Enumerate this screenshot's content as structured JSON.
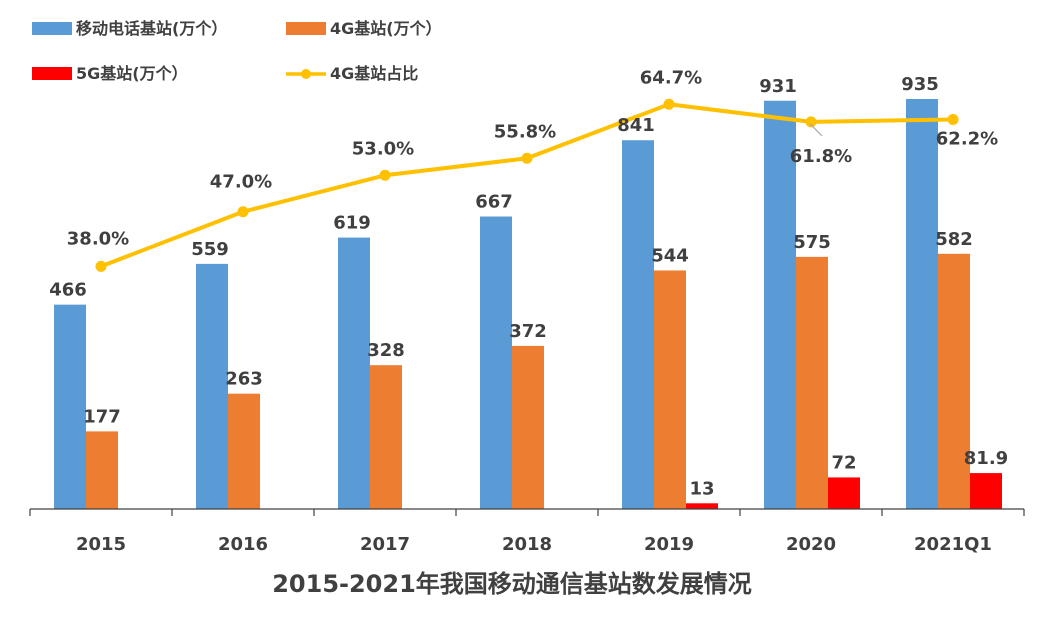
{
  "chart_data": {
    "type": "bar",
    "title": "2015-2021年我国移动通信基站数发展情况",
    "categories": [
      "2015",
      "2016",
      "2017",
      "2018",
      "2019",
      "2020",
      "2021Q1"
    ],
    "ylim": [
      0,
      1000
    ],
    "line_ylim": [
      0,
      100
    ],
    "series": [
      {
        "name": "移动电话基站(万个）",
        "type": "bar",
        "color": "#5b9bd5",
        "values": [
          466,
          559,
          619,
          667,
          841,
          931,
          935
        ],
        "labels": [
          "466",
          "559",
          "619",
          "667",
          "841",
          "931",
          "935"
        ]
      },
      {
        "name": "4G基站(万个）",
        "type": "bar",
        "color": "#ed7d31",
        "values": [
          177,
          263,
          328,
          372,
          544,
          575,
          582
        ],
        "labels": [
          "177",
          "263",
          "328",
          "372",
          "544",
          "575",
          "582"
        ]
      },
      {
        "name": "5G基站(万个）",
        "type": "bar",
        "color": "#ff0000",
        "values": [
          null,
          null,
          null,
          null,
          13,
          72,
          81.9
        ],
        "labels": [
          "",
          "",
          "",
          "",
          "13",
          "72",
          "81.9"
        ]
      },
      {
        "name": "4G基站占比",
        "type": "line",
        "color": "#ffc000",
        "values": [
          38.0,
          47.0,
          53.0,
          55.8,
          64.7,
          61.8,
          62.2
        ],
        "labels": [
          "38.0%",
          "47.0%",
          "53.0%",
          "55.8%",
          "64.7%",
          "61.8%",
          "62.2%"
        ]
      }
    ],
    "legend_position": "top",
    "grid": false
  }
}
